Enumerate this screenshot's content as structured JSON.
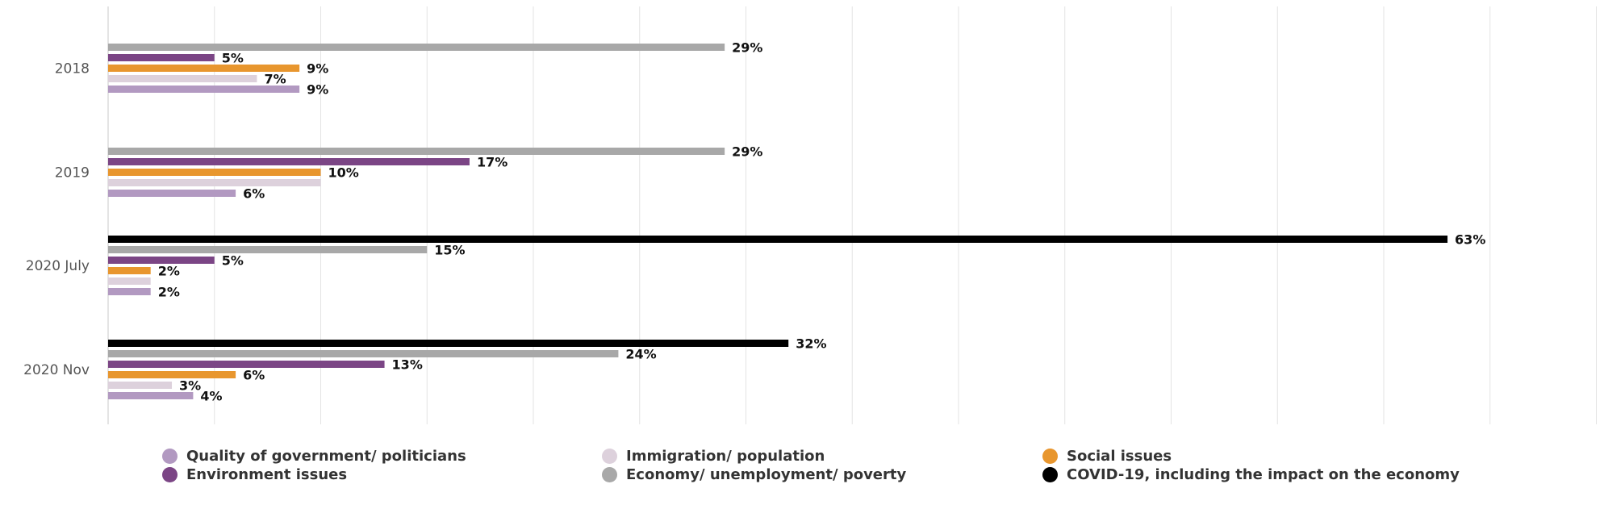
{
  "chart_data": {
    "type": "bar",
    "orientation": "horizontal",
    "categories": [
      "2018",
      "2019",
      "2020 July",
      "2020 Nov"
    ],
    "series": [
      {
        "name": "COVID-19, including the impact on the economy",
        "color": "#000000",
        "values": [
          null,
          null,
          63,
          32
        ]
      },
      {
        "name": "Economy/ unemployment/ poverty",
        "color": "#a8a8a8",
        "values": [
          29,
          29,
          15,
          24
        ]
      },
      {
        "name": "Environment issues",
        "color": "#7b4585",
        "values": [
          5,
          17,
          5,
          13
        ]
      },
      {
        "name": "Social issues",
        "color": "#e8962e",
        "values": [
          9,
          10,
          2,
          6
        ]
      },
      {
        "name": "Immigration/ population",
        "color": "#ddd1dc",
        "values": [
          7,
          10,
          2,
          3
        ]
      },
      {
        "name": "Quality of government/ politicians",
        "color": "#b299c1",
        "values": [
          9,
          6,
          2,
          4
        ]
      }
    ],
    "data_labels": [
      [
        null,
        "29%",
        "5%",
        "9%",
        "7%",
        "9%"
      ],
      [
        null,
        "29%",
        "17%",
        "10%",
        null,
        "6%"
      ],
      [
        "63%",
        "15%",
        "5%",
        "2%",
        null,
        "2%"
      ],
      [
        "32%",
        "24%",
        "13%",
        "6%",
        "3%",
        "4%"
      ]
    ],
    "xlim": [
      0,
      70
    ],
    "grid": true,
    "legend_position": "bottom",
    "legend_order": [
      "Quality of government/ politicians",
      "Immigration/ population",
      "Social issues",
      "Environment issues",
      "Economy/ unemployment/ poverty",
      "COVID-19, including the impact on the economy"
    ]
  }
}
